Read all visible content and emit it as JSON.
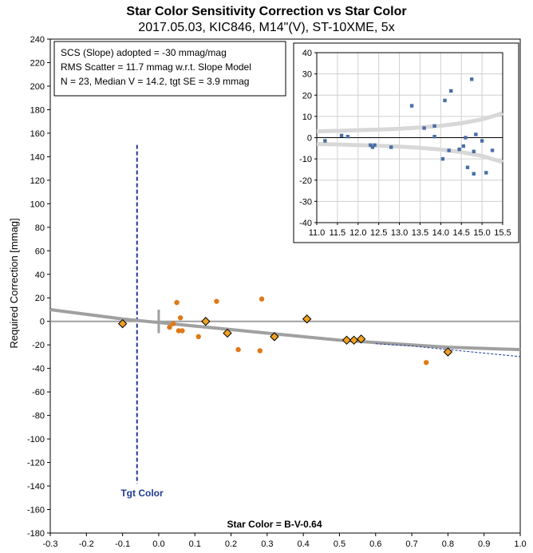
{
  "chart_data": {
    "type": "scatter",
    "title": "Star Color Sensitivity Correction vs Star Color",
    "subtitle": "2017.05.03, KIC846, M14\"(V), ST-10XME, 5x",
    "xlabel": "Star Color = B-V-0.64",
    "ylabel": "Required Correction [mmag]",
    "xlim": [
      -0.3,
      1.0
    ],
    "ylim": [
      -180,
      240
    ],
    "x_ticks": [
      "-0.3",
      "-0.2",
      "-0.1",
      "0.0",
      "0.1",
      "0.2",
      "0.3",
      "0.4",
      "0.5",
      "0.6",
      "0.7",
      "0.8",
      "0.9",
      "1.0"
    ],
    "y_ticks": [
      "240",
      "220",
      "200",
      "180",
      "160",
      "140",
      "120",
      "100",
      "80",
      "60",
      "40",
      "20",
      "0",
      "-20",
      "-40",
      "-60",
      "-80",
      "-100",
      "-120",
      "-140",
      "-160",
      "-180"
    ],
    "info_lines": [
      "SCS (Slope) adopted  =  -30 mmag/mag",
      "RMS Scatter = 11.7 mmag w.r.t. Slope Model",
      "N = 23,  Median V = 14.2, tgt SE = 3.9 mmag"
    ],
    "tgt_label": "Tgt Color",
    "tgt_x": -0.06,
    "tgt_line_y": [
      -138,
      150
    ],
    "comp_stars": [
      {
        "x": -0.1,
        "y": -2
      },
      {
        "x": 0.13,
        "y": 0
      },
      {
        "x": 0.19,
        "y": -10
      },
      {
        "x": 0.32,
        "y": -13
      },
      {
        "x": 0.41,
        "y": 2
      },
      {
        "x": 0.52,
        "y": -16
      },
      {
        "x": 0.54,
        "y": -16
      },
      {
        "x": 0.56,
        "y": -15
      },
      {
        "x": 0.8,
        "y": -26
      }
    ],
    "check_stars": [
      {
        "x": 0.03,
        "y": -5
      },
      {
        "x": 0.04,
        "y": -2
      },
      {
        "x": 0.05,
        "y": 16
      },
      {
        "x": 0.055,
        "y": -8
      },
      {
        "x": 0.06,
        "y": 3
      },
      {
        "x": 0.065,
        "y": -8
      },
      {
        "x": 0.11,
        "y": -13
      },
      {
        "x": 0.16,
        "y": 17
      },
      {
        "x": 0.22,
        "y": -24
      },
      {
        "x": 0.28,
        "y": -25
      },
      {
        "x": 0.285,
        "y": 19
      },
      {
        "x": 0.74,
        "y": -35
      }
    ],
    "fit_curve": [
      {
        "x": -0.3,
        "y": 10
      },
      {
        "x": -0.2,
        "y": 6
      },
      {
        "x": -0.1,
        "y": 2
      },
      {
        "x": 0.0,
        "y": -1
      },
      {
        "x": 0.1,
        "y": -4
      },
      {
        "x": 0.2,
        "y": -7
      },
      {
        "x": 0.3,
        "y": -10
      },
      {
        "x": 0.4,
        "y": -13
      },
      {
        "x": 0.5,
        "y": -16
      },
      {
        "x": 0.6,
        "y": -18
      },
      {
        "x": 0.7,
        "y": -20
      },
      {
        "x": 0.8,
        "y": -22
      },
      {
        "x": 0.9,
        "y": -23
      },
      {
        "x": 1.0,
        "y": -24
      }
    ],
    "dashed_curve": [
      {
        "x": 0.6,
        "y": -19
      },
      {
        "x": 0.7,
        "y": -21
      },
      {
        "x": 0.8,
        "y": -24
      },
      {
        "x": 0.9,
        "y": -27
      },
      {
        "x": 1.0,
        "y": -30
      }
    ],
    "tgt_marker_y": [
      -10,
      10
    ],
    "inset": {
      "xlim": [
        11.0,
        15.5
      ],
      "ylim": [
        -40,
        40
      ],
      "x_ticks": [
        "11.0",
        "11.5",
        "12.0",
        "12.5",
        "13.0",
        "13.5",
        "14.0",
        "14.5",
        "15.0",
        "15.5"
      ],
      "y_ticks": [
        "40",
        "30",
        "20",
        "10",
        "0",
        "-10",
        "-20",
        "-30",
        "-40"
      ],
      "points": [
        {
          "x": 11.2,
          "y": -1.5
        },
        {
          "x": 11.6,
          "y": 1
        },
        {
          "x": 11.75,
          "y": 0.5
        },
        {
          "x": 12.3,
          "y": -3.5
        },
        {
          "x": 12.35,
          "y": -4.5
        },
        {
          "x": 12.4,
          "y": -3.5
        },
        {
          "x": 12.8,
          "y": -4.5
        },
        {
          "x": 13.3,
          "y": 15
        },
        {
          "x": 13.6,
          "y": 4.5
        },
        {
          "x": 13.85,
          "y": 5.5
        },
        {
          "x": 13.85,
          "y": 0.5
        },
        {
          "x": 14.05,
          "y": -10
        },
        {
          "x": 14.1,
          "y": 17.5
        },
        {
          "x": 14.2,
          "y": -6
        },
        {
          "x": 14.25,
          "y": 22
        },
        {
          "x": 14.45,
          "y": -5.5
        },
        {
          "x": 14.55,
          "y": -4
        },
        {
          "x": 14.6,
          "y": 0
        },
        {
          "x": 14.65,
          "y": -14
        },
        {
          "x": 14.75,
          "y": 27.5
        },
        {
          "x": 14.8,
          "y": -6.5
        },
        {
          "x": 14.8,
          "y": -17
        },
        {
          "x": 14.85,
          "y": 1.5
        },
        {
          "x": 15.0,
          "y": -1.5
        },
        {
          "x": 15.1,
          "y": -16.5
        },
        {
          "x": 15.25,
          "y": -6
        }
      ],
      "upper_band": [
        {
          "x": 11.0,
          "y": 3
        },
        {
          "x": 11.5,
          "y": 3.2
        },
        {
          "x": 12.0,
          "y": 3.5
        },
        {
          "x": 12.5,
          "y": 3.8
        },
        {
          "x": 13.0,
          "y": 4.2
        },
        {
          "x": 13.5,
          "y": 4.8
        },
        {
          "x": 14.0,
          "y": 5.6
        },
        {
          "x": 14.5,
          "y": 6.8
        },
        {
          "x": 15.0,
          "y": 8.6
        },
        {
          "x": 15.5,
          "y": 11.5
        }
      ],
      "lower_band": [
        {
          "x": 11.0,
          "y": -3
        },
        {
          "x": 11.5,
          "y": -3.2
        },
        {
          "x": 12.0,
          "y": -3.5
        },
        {
          "x": 12.5,
          "y": -3.8
        },
        {
          "x": 13.0,
          "y": -4.2
        },
        {
          "x": 13.5,
          "y": -4.8
        },
        {
          "x": 14.0,
          "y": -5.6
        },
        {
          "x": 14.5,
          "y": -6.8
        },
        {
          "x": 15.0,
          "y": -8.6
        },
        {
          "x": 15.5,
          "y": -11.5
        }
      ]
    },
    "colors": {
      "comp_fill": "#f0a020",
      "comp_stroke": "#000000",
      "check_fill": "#e07818",
      "fit_line": "#a0a0a0",
      "zero_line": "#a0a0a0",
      "tgt_line": "#1f3a93",
      "dashed": "#1f3a93",
      "inset_point": "#4a6fa5",
      "band": "#d8d8d8",
      "grid": "#d0d0d0"
    }
  }
}
